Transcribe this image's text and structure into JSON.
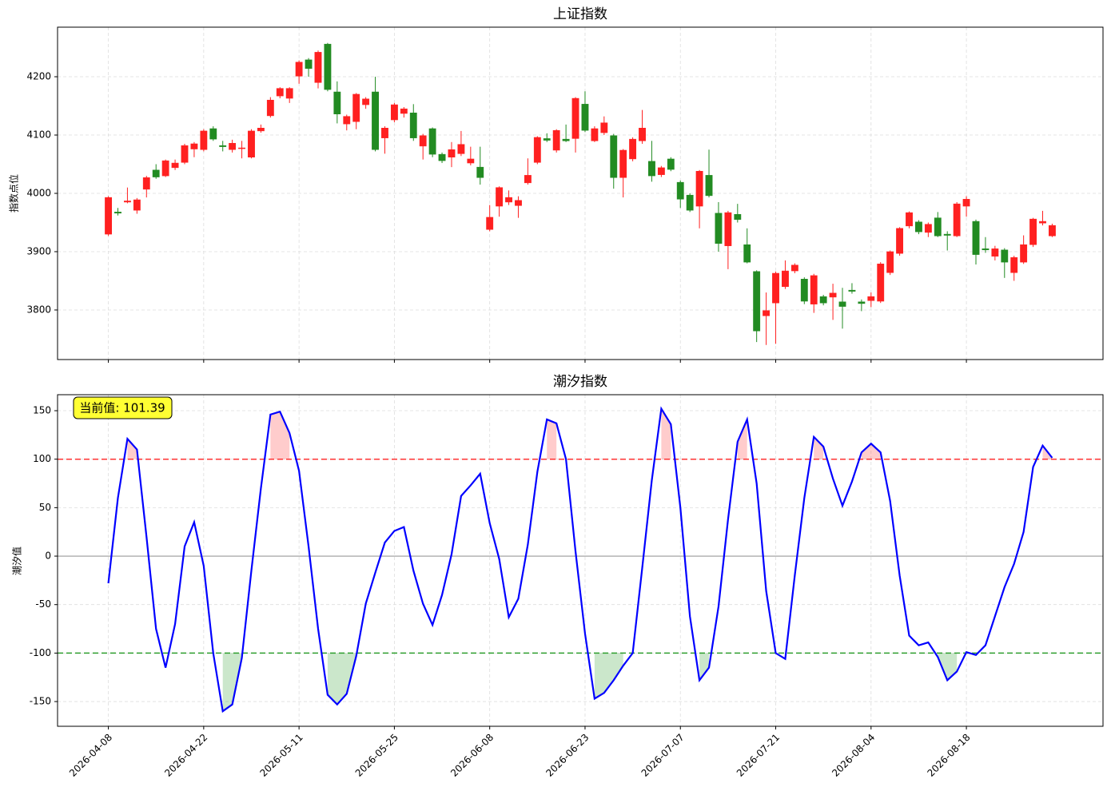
{
  "chart_data": [
    {
      "type": "candlestick",
      "title": "上证指数",
      "ylabel": "指数点位",
      "ylim": [
        3715,
        4285
      ],
      "yticks": [
        3800,
        3900,
        4000,
        4100,
        4200
      ],
      "grid": true,
      "up_color": "#ff2020",
      "down_color": "#228b22",
      "open": [
        3930,
        3968,
        3985,
        3971,
        4007,
        4040,
        4030,
        4044,
        4053,
        4076,
        4075,
        4111,
        4082,
        4075,
        4077,
        4062,
        4107,
        4133,
        4167,
        4163,
        4201,
        4229,
        4190,
        4256,
        4174,
        4119,
        4123,
        4152,
        4174,
        4095,
        4126,
        4137,
        4138,
        4081,
        4111,
        4067,
        4062,
        4068,
        4052,
        4045,
        3938,
        3978,
        3985,
        3979,
        4018,
        4053,
        4094,
        4074,
        4093,
        4094,
        4153,
        4090,
        4104,
        4099,
        4027,
        4059,
        4090,
        4055,
        4032,
        4059,
        4019,
        3997,
        3978,
        4031,
        3966,
        3910,
        3964,
        3912,
        3866,
        3790,
        3812,
        3840,
        3867,
        3853,
        3810,
        3823,
        3822,
        3814,
        3834,
        3814,
        3816,
        3815,
        3864,
        3897,
        3944,
        3951,
        3933,
        3958,
        3930,
        3927,
        3978,
        3952,
        3905,
        3892,
        3903,
        3864,
        3882,
        3912,
        3949,
        3927
      ],
      "high": [
        3995,
        3975,
        4010,
        3992,
        4030,
        4050,
        4058,
        4058,
        4085,
        4088,
        4110,
        4115,
        4090,
        4092,
        4090,
        4110,
        4118,
        4165,
        4182,
        4182,
        4228,
        4232,
        4245,
        4258,
        4192,
        4135,
        4172,
        4165,
        4200,
        4115,
        4155,
        4148,
        4153,
        4102,
        4113,
        4070,
        4088,
        4107,
        4080,
        4080,
        3980,
        4012,
        4005,
        3995,
        4060,
        4098,
        4103,
        4110,
        4118,
        4165,
        4175,
        4115,
        4132,
        4102,
        4076,
        4096,
        4143,
        4090,
        4047,
        4062,
        4022,
        4000,
        4040,
        4075,
        3985,
        3970,
        3982,
        3940,
        3868,
        3830,
        3866,
        3885,
        3880,
        3856,
        3862,
        3826,
        3845,
        3838,
        3846,
        3818,
        3830,
        3882,
        3902,
        3942,
        3969,
        3954,
        3950,
        3968,
        3935,
        3985,
        3995,
        3955,
        3925,
        3910,
        3906,
        3893,
        3928,
        3958,
        3970,
        3948
      ],
      "low": [
        3927,
        3962,
        3983,
        3965,
        3993,
        4025,
        4028,
        4040,
        4050,
        4062,
        4072,
        4090,
        4072,
        4070,
        4060,
        4060,
        4104,
        4130,
        4163,
        4155,
        4188,
        4200,
        4180,
        4175,
        4120,
        4108,
        4110,
        4145,
        4072,
        4068,
        4122,
        4130,
        4090,
        4058,
        4062,
        4052,
        4045,
        4064,
        4048,
        4015,
        3935,
        3960,
        3980,
        3958,
        4015,
        4050,
        4088,
        4070,
        4088,
        4070,
        4105,
        4088,
        4100,
        4008,
        3993,
        4055,
        4085,
        4020,
        4028,
        4038,
        3975,
        3968,
        3940,
        3993,
        3900,
        3870,
        3950,
        3880,
        3745,
        3740,
        3742,
        3836,
        3863,
        3810,
        3795,
        3808,
        3783,
        3768,
        3828,
        3798,
        3805,
        3812,
        3860,
        3893,
        3940,
        3930,
        3925,
        3925,
        3902,
        3925,
        3960,
        3878,
        3898,
        3885,
        3855,
        3850,
        3879,
        3908,
        3945,
        3925
      ],
      "close": [
        3993,
        3966,
        3987,
        3989,
        4027,
        4028,
        4056,
        4052,
        4082,
        4085,
        4107,
        4093,
        4080,
        4086,
        4078,
        4107,
        4112,
        4160,
        4180,
        4180,
        4225,
        4214,
        4242,
        4178,
        4136,
        4132,
        4170,
        4162,
        4075,
        4112,
        4152,
        4145,
        4095,
        4099,
        4067,
        4056,
        4075,
        4084,
        4059,
        4027,
        3959,
        4010,
        3993,
        3988,
        4031,
        4096,
        4091,
        4108,
        4090,
        4163,
        4108,
        4111,
        4121,
        4027,
        4074,
        4093,
        4112,
        4030,
        4044,
        4041,
        3990,
        3971,
        4038,
        3996,
        3914,
        3967,
        3955,
        3882,
        3764,
        3799,
        3863,
        3867,
        3877,
        3815,
        3859,
        3812,
        3829,
        3806,
        3832,
        3811,
        3823,
        3879,
        3900,
        3940,
        3967,
        3934,
        3947,
        3927,
        3928,
        3982,
        3990,
        3895,
        3903,
        3905,
        3882,
        3890,
        3912,
        3956,
        3952,
        3945
      ]
    },
    {
      "type": "line",
      "title": "潮汐指数",
      "ylabel": "潮汐值",
      "ylim": [
        -175.5,
        166.5
      ],
      "yticks": [
        -150,
        -100,
        -50,
        0,
        50,
        100,
        150
      ],
      "grid": true,
      "color": "#0000ff",
      "upper": 100,
      "lower": -100,
      "baseline": 0,
      "upper_color": "#ff3333",
      "lower_color": "#2e9e2e",
      "annotation": "当前值: 101.39",
      "categories": [
        "2026-04-08",
        null,
        null,
        null,
        null,
        null,
        null,
        null,
        null,
        null,
        "2026-04-22",
        null,
        null,
        null,
        null,
        null,
        null,
        null,
        null,
        null,
        "2026-05-11",
        null,
        null,
        null,
        null,
        null,
        null,
        null,
        null,
        null,
        "2026-05-25",
        null,
        null,
        null,
        null,
        null,
        null,
        null,
        null,
        null,
        "2026-06-08",
        null,
        null,
        null,
        null,
        null,
        null,
        null,
        null,
        null,
        "2026-06-23",
        null,
        null,
        null,
        null,
        null,
        null,
        null,
        null,
        null,
        "2026-07-07",
        null,
        null,
        null,
        null,
        null,
        null,
        null,
        null,
        null,
        "2026-07-21",
        null,
        null,
        null,
        null,
        null,
        null,
        null,
        null,
        null,
        "2026-08-04",
        null,
        null,
        null,
        null,
        null,
        null,
        null,
        null,
        null,
        "2026-08-18",
        null,
        null,
        null,
        null,
        null,
        null,
        null,
        null,
        null
      ],
      "values": [
        -28,
        60,
        121,
        110,
        20,
        -75,
        -115,
        -70,
        10,
        35,
        -10,
        -100,
        -160,
        -153,
        -105,
        -15,
        70,
        146,
        149,
        127,
        88,
        10,
        -75,
        -143,
        -153,
        -142,
        -103,
        -49,
        -17,
        14,
        26,
        30,
        -15,
        -49,
        -71,
        -40,
        2,
        62,
        73,
        85,
        34,
        -3,
        -63,
        -44,
        12,
        87,
        141,
        137,
        100,
        5,
        -80,
        -147,
        -141,
        -128,
        -113,
        -100,
        -12,
        78,
        152,
        136,
        50,
        -62,
        -128,
        -115,
        -52,
        38,
        118,
        141,
        75,
        -36,
        -100,
        -106,
        -20,
        60,
        123,
        113,
        80,
        52,
        77,
        107,
        116,
        107,
        57,
        -20,
        -82,
        -92,
        -89,
        -104,
        -128,
        -119,
        -99,
        -102,
        -92,
        -62,
        -32,
        -8,
        25,
        92,
        114,
        101.39
      ]
    }
  ]
}
